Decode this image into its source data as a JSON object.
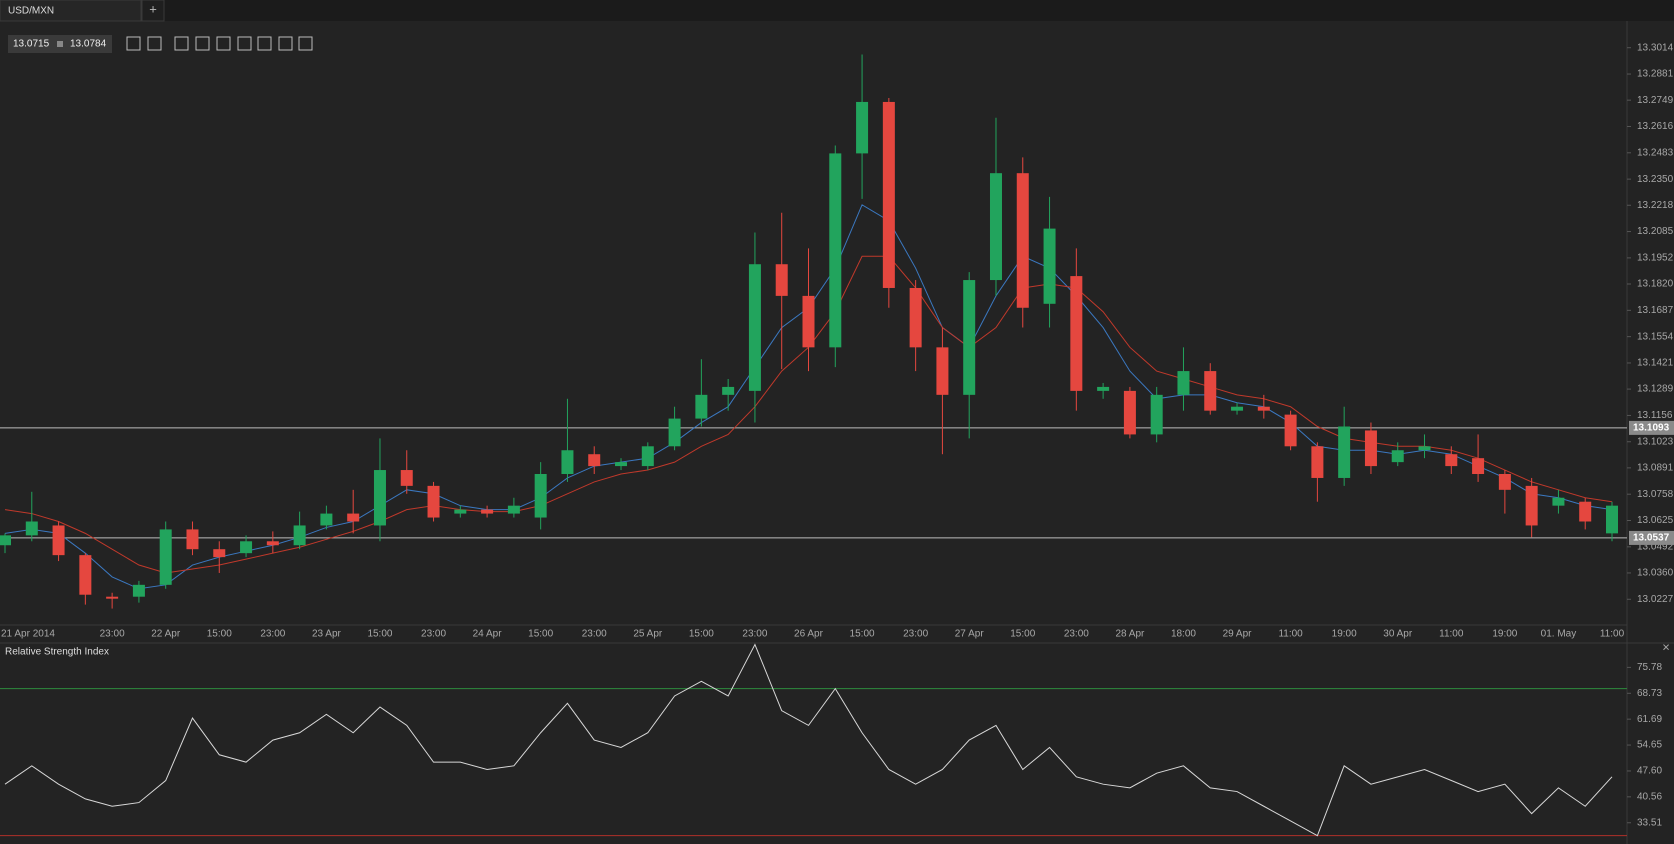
{
  "tab": "USD/MXN",
  "quote": {
    "bid": "13.0715",
    "ask": "13.0784"
  },
  "chart_data": [
    {
      "type": "candlestick",
      "categories": [
        "21 Apr 2014",
        null,
        null,
        null,
        "23:00",
        null,
        "22 Apr",
        null,
        "15:00",
        null,
        "23:00",
        null,
        "23 Apr",
        null,
        "15:00",
        null,
        "23:00",
        null,
        "24 Apr",
        null,
        "15:00",
        null,
        "23:00",
        null,
        "25 Apr",
        null,
        "15:00",
        null,
        "23:00",
        null,
        "26 Apr",
        null,
        "15:00",
        null,
        "23:00",
        null,
        "27 Apr",
        null,
        "15:00",
        null,
        "23:00",
        null,
        "28 Apr",
        null,
        "18:00",
        null,
        "29 Apr",
        null,
        "11:00",
        null,
        "19:00",
        null,
        "30 Apr",
        null,
        "11:00",
        null,
        "19:00",
        null,
        "01. May",
        null,
        "11:00"
      ],
      "open": [
        13.05,
        13.055,
        13.06,
        13.045,
        13.024,
        13.024,
        13.03,
        13.058,
        13.048,
        13.046,
        13.052,
        13.05,
        13.06,
        13.066,
        13.06,
        13.088,
        13.08,
        13.066,
        13.068,
        13.066,
        13.064,
        13.086,
        13.096,
        13.09,
        13.09,
        13.1,
        13.114,
        13.126,
        13.128,
        13.192,
        13.176,
        13.15,
        13.248,
        13.274,
        13.18,
        13.15,
        13.126,
        13.184,
        13.238,
        13.172,
        13.186,
        13.128,
        13.128,
        13.106,
        13.126,
        13.138,
        13.118,
        13.12,
        13.116,
        13.1,
        13.084,
        13.108,
        13.092,
        13.098,
        13.096,
        13.094,
        13.086,
        13.08,
        13.07,
        13.072,
        13.056
      ],
      "high": [
        13.056,
        13.077,
        13.062,
        13.046,
        13.026,
        13.032,
        13.062,
        13.062,
        13.052,
        13.055,
        13.057,
        13.067,
        13.07,
        13.078,
        13.104,
        13.098,
        13.082,
        13.07,
        13.07,
        13.074,
        13.092,
        13.124,
        13.1,
        13.094,
        13.102,
        13.12,
        13.144,
        13.134,
        13.208,
        13.218,
        13.2,
        13.252,
        13.298,
        13.276,
        13.184,
        13.16,
        13.188,
        13.266,
        13.246,
        13.226,
        13.2,
        13.132,
        13.13,
        13.13,
        13.15,
        13.142,
        13.122,
        13.126,
        13.118,
        13.102,
        13.12,
        13.112,
        13.102,
        13.106,
        13.1,
        13.106,
        13.088,
        13.084,
        13.078,
        13.074,
        13.072
      ],
      "low": [
        13.046,
        13.052,
        13.042,
        13.02,
        13.018,
        13.021,
        13.028,
        13.045,
        13.036,
        13.044,
        13.046,
        13.048,
        13.058,
        13.056,
        13.052,
        13.076,
        13.062,
        13.064,
        13.064,
        13.064,
        13.058,
        13.082,
        13.086,
        13.088,
        13.088,
        13.098,
        13.11,
        13.118,
        13.112,
        13.139,
        13.138,
        13.14,
        13.225,
        13.17,
        13.138,
        13.096,
        13.104,
        13.176,
        13.16,
        13.16,
        13.118,
        13.124,
        13.104,
        13.102,
        13.118,
        13.116,
        13.116,
        13.114,
        13.098,
        13.072,
        13.08,
        13.086,
        13.09,
        13.094,
        13.086,
        13.082,
        13.066,
        13.054,
        13.066,
        13.058,
        13.052
      ],
      "close": [
        13.055,
        13.062,
        13.045,
        13.025,
        13.023,
        13.03,
        13.058,
        13.048,
        13.044,
        13.052,
        13.05,
        13.06,
        13.066,
        13.062,
        13.088,
        13.08,
        13.064,
        13.068,
        13.066,
        13.07,
        13.086,
        13.098,
        13.09,
        13.092,
        13.1,
        13.114,
        13.126,
        13.13,
        13.192,
        13.176,
        13.15,
        13.248,
        13.274,
        13.18,
        13.15,
        13.126,
        13.184,
        13.238,
        13.17,
        13.21,
        13.128,
        13.13,
        13.106,
        13.126,
        13.138,
        13.118,
        13.12,
        13.118,
        13.1,
        13.084,
        13.11,
        13.09,
        13.098,
        13.1,
        13.09,
        13.086,
        13.078,
        13.06,
        13.074,
        13.062,
        13.07
      ],
      "up_color": "#22a45d",
      "down_color": "#e5473f",
      "series": [
        {
          "color": "#3b78c0",
          "values": [
            13.056,
            13.058,
            13.056,
            13.046,
            13.034,
            13.028,
            13.03,
            13.04,
            13.044,
            13.047,
            13.05,
            13.054,
            13.059,
            13.062,
            13.07,
            13.078,
            13.076,
            13.07,
            13.068,
            13.068,
            13.074,
            13.084,
            13.09,
            13.092,
            13.094,
            13.102,
            13.112,
            13.12,
            13.14,
            13.16,
            13.17,
            13.19,
            13.222,
            13.214,
            13.19,
            13.16,
            13.15,
            13.176,
            13.196,
            13.19,
            13.176,
            13.16,
            13.138,
            13.124,
            13.126,
            13.126,
            13.122,
            13.12,
            13.112,
            13.1,
            13.098,
            13.098,
            13.096,
            13.098,
            13.096,
            13.09,
            13.084,
            13.076,
            13.074,
            13.07,
            13.068
          ]
        },
        {
          "color": "#c0392b",
          "values": [
            13.068,
            13.066,
            13.062,
            13.056,
            13.048,
            13.04,
            13.036,
            13.038,
            13.04,
            13.043,
            13.046,
            13.049,
            13.053,
            13.057,
            13.062,
            13.068,
            13.07,
            13.068,
            13.067,
            13.067,
            13.07,
            13.076,
            13.082,
            13.086,
            13.088,
            13.092,
            13.1,
            13.106,
            13.12,
            13.138,
            13.15,
            13.168,
            13.196,
            13.196,
            13.18,
            13.16,
            13.15,
            13.16,
            13.18,
            13.182,
            13.18,
            13.168,
            13.15,
            13.138,
            13.134,
            13.13,
            13.126,
            13.124,
            13.12,
            13.11,
            13.104,
            13.102,
            13.1,
            13.1,
            13.098,
            13.094,
            13.088,
            13.082,
            13.078,
            13.074,
            13.072
          ]
        }
      ],
      "ylim": [
        13.0097,
        13.3149
      ],
      "yticks": [
        13.0227,
        {
          "value": 13.036,
          "label": "13.0360"
        },
        13.0492,
        13.0625,
        13.0758,
        13.0891,
        13.1023,
        13.1156,
        13.1289,
        13.1421,
        13.1554,
        13.1687,
        {
          "value": 13.182,
          "label": "13.1820"
        },
        13.1952,
        13.2085,
        13.2218,
        {
          "value": 13.235,
          "label": "13.2350"
        },
        13.2483,
        13.2616,
        13.2749,
        13.2881,
        13.3014
      ],
      "hlines": [
        13.1093,
        13.0537
      ]
    },
    {
      "type": "line",
      "title": "Relative Strength Index",
      "color": "#d8d8d8",
      "values": [
        44,
        49,
        44,
        40,
        38,
        39,
        45,
        62,
        52,
        50,
        56,
        58,
        63,
        58,
        65,
        60,
        50,
        50,
        48,
        49,
        58,
        66,
        56,
        54,
        58,
        68,
        72,
        68,
        82,
        64,
        60,
        70,
        58,
        48,
        44,
        48,
        56,
        60,
        48,
        54,
        46,
        44,
        43,
        47,
        49,
        43,
        42,
        38,
        34,
        30,
        49,
        44,
        46,
        48,
        45,
        42,
        44,
        36,
        43,
        38,
        46
      ],
      "ylim": [
        27.73,
        82.14
      ],
      "yticks": [
        33.51,
        40.56,
        {
          "value": 47.6,
          "label": "47.60"
        },
        54.65,
        61.69,
        68.73,
        75.78
      ],
      "levels": [
        {
          "value": 70,
          "color": "#2e8b3e"
        },
        {
          "value": 30,
          "color": "#b0302a"
        }
      ]
    }
  ]
}
